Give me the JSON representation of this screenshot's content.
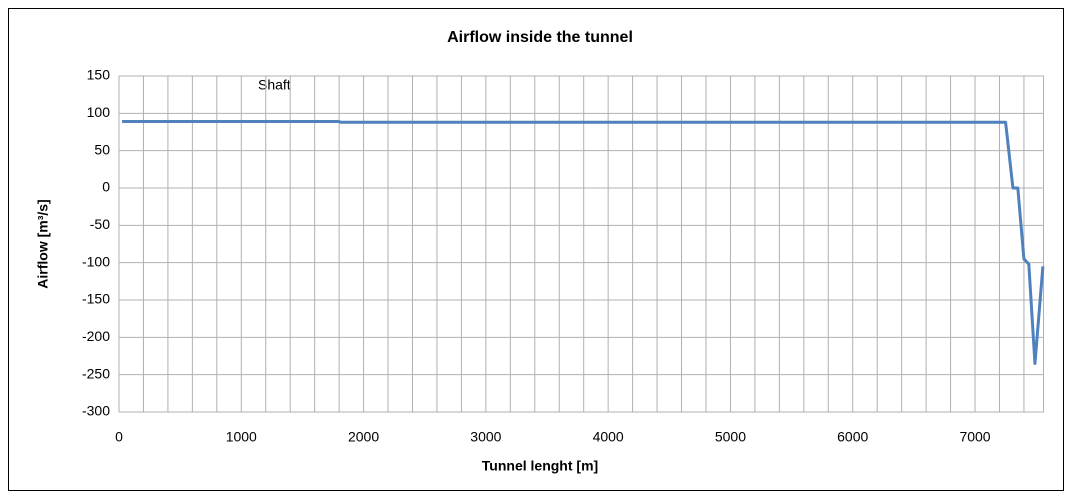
{
  "chart_data": {
    "type": "line",
    "title": "Airflow inside the tunnel",
    "x_label": "Tunnel lenght [m]",
    "y_label": "Airflow [m³/s]",
    "annotation": "Shaft",
    "xlim": [
      0,
      7560
    ],
    "xticks": [
      0,
      1000,
      2000,
      3000,
      4000,
      5000,
      6000,
      7000
    ],
    "xgrid": [
      0,
      200,
      400,
      600,
      800,
      1000,
      1200,
      1400,
      1600,
      1800,
      2000,
      2200,
      2400,
      2600,
      2800,
      3000,
      3200,
      3400,
      3600,
      3800,
      4000,
      4200,
      4400,
      4600,
      4800,
      5000,
      5200,
      5400,
      5600,
      5800,
      6000,
      6200,
      6400,
      6600,
      6800,
      7000,
      7200,
      7400
    ],
    "ylim": [
      -300,
      150
    ],
    "yticks": [
      -300,
      -250,
      -200,
      -150,
      -100,
      -50,
      0,
      50,
      100,
      150
    ],
    "grid": true,
    "series": [
      {
        "name": "Airflow",
        "color": "#4f81bd",
        "x": [
          25,
          1800,
          1810,
          7250,
          7310,
          7350,
          7400,
          7440,
          7490,
          7555
        ],
        "values": [
          89,
          89,
          88,
          88,
          0,
          0,
          -95,
          -102,
          -235,
          -105
        ]
      }
    ]
  }
}
